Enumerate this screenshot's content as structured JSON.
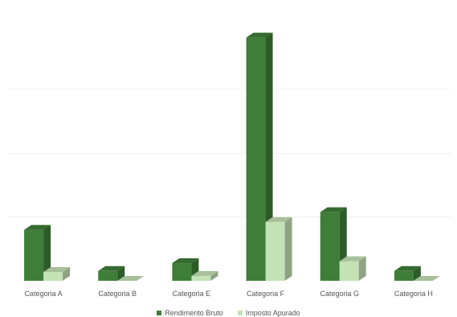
{
  "chart_data": {
    "type": "bar",
    "three_d": true,
    "categories": [
      "Categoria A",
      "Categoria B",
      "Categoria E",
      "Categoria F",
      "Categoria G",
      "Categoria H"
    ],
    "series": [
      {
        "name": "Rendimento Bruto",
        "values": [
          52,
          10,
          18,
          248,
          70,
          10
        ],
        "color": "#3e7e38"
      },
      {
        "name": "Imposto Apurado",
        "values": [
          9,
          0,
          5,
          60,
          20,
          0
        ],
        "color": "#c5e2b6"
      }
    ],
    "title": "",
    "xlabel": "",
    "ylabel": "",
    "ylim": [
      0,
      260
    ],
    "grid": true,
    "legend_position": "bottom"
  }
}
